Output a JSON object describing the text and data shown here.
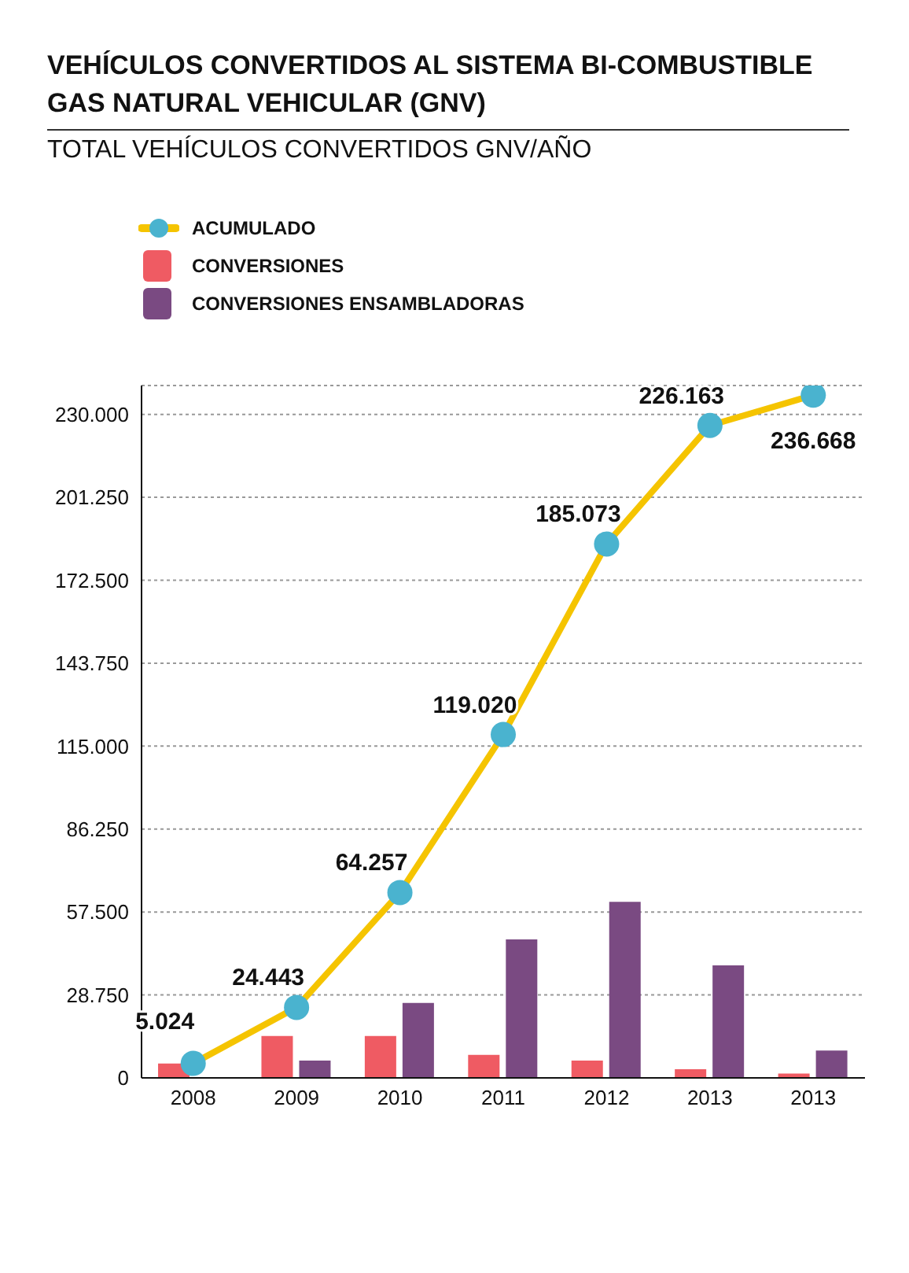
{
  "chart_data": {
    "type": "bar",
    "title": "VEHÍCULOS CONVERTIDOS AL SISTEMA BI-COMBUSTIBLE GAS NATURAL VEHICULAR (GNV)",
    "subtitle": "TOTAL VEHÍCULOS CONVERTIDOS GNV/AÑO",
    "categories": [
      "2008",
      "2009",
      "2010",
      "2011",
      "2012",
      "2013",
      "2013"
    ],
    "series": [
      {
        "name": "ACUMULADO",
        "type": "line",
        "color": "#f5c400",
        "colors": [
          "#4ab3cf",
          "#4ab3cf",
          "#4ab3cf",
          "#4ab3cf",
          "#4ab3cf",
          "#4ab3cf",
          "#4ab3cf"
        ],
        "values": [
          5024,
          24443,
          64257,
          119020,
          185073,
          226163,
          236668
        ],
        "value_labels": [
          "5.024",
          "24.443",
          "64.257",
          "119.020",
          "185.073",
          "226.163",
          "236.668"
        ]
      },
      {
        "name": "CONVERSIONES",
        "color": "#ef5b63",
        "values": [
          5000,
          14500,
          14500,
          8000,
          6000,
          3000,
          1500
        ]
      },
      {
        "name": "CONVERSIONES ENSAMBLADORAS",
        "color": "#7a4a82",
        "values": [
          null,
          6000,
          26000,
          48000,
          61000,
          39000,
          9500
        ]
      }
    ],
    "ylim": [
      0,
      240000
    ],
    "yticks": [
      0,
      {
        "value": 28750,
        "label": "28.750"
      },
      {
        "value": 57500,
        "label": "57.500"
      },
      {
        "value": 86250,
        "label": "86.250"
      },
      {
        "value": 115000,
        "label": "115.000"
      },
      {
        "value": 143750,
        "label": "143.750"
      },
      {
        "value": 172500,
        "label": "172.500"
      },
      {
        "value": 201250,
        "label": "201.250"
      },
      {
        "value": 230000,
        "label": "230.000"
      }
    ],
    "grid": "y",
    "marker": "circle",
    "legend": "top left"
  }
}
